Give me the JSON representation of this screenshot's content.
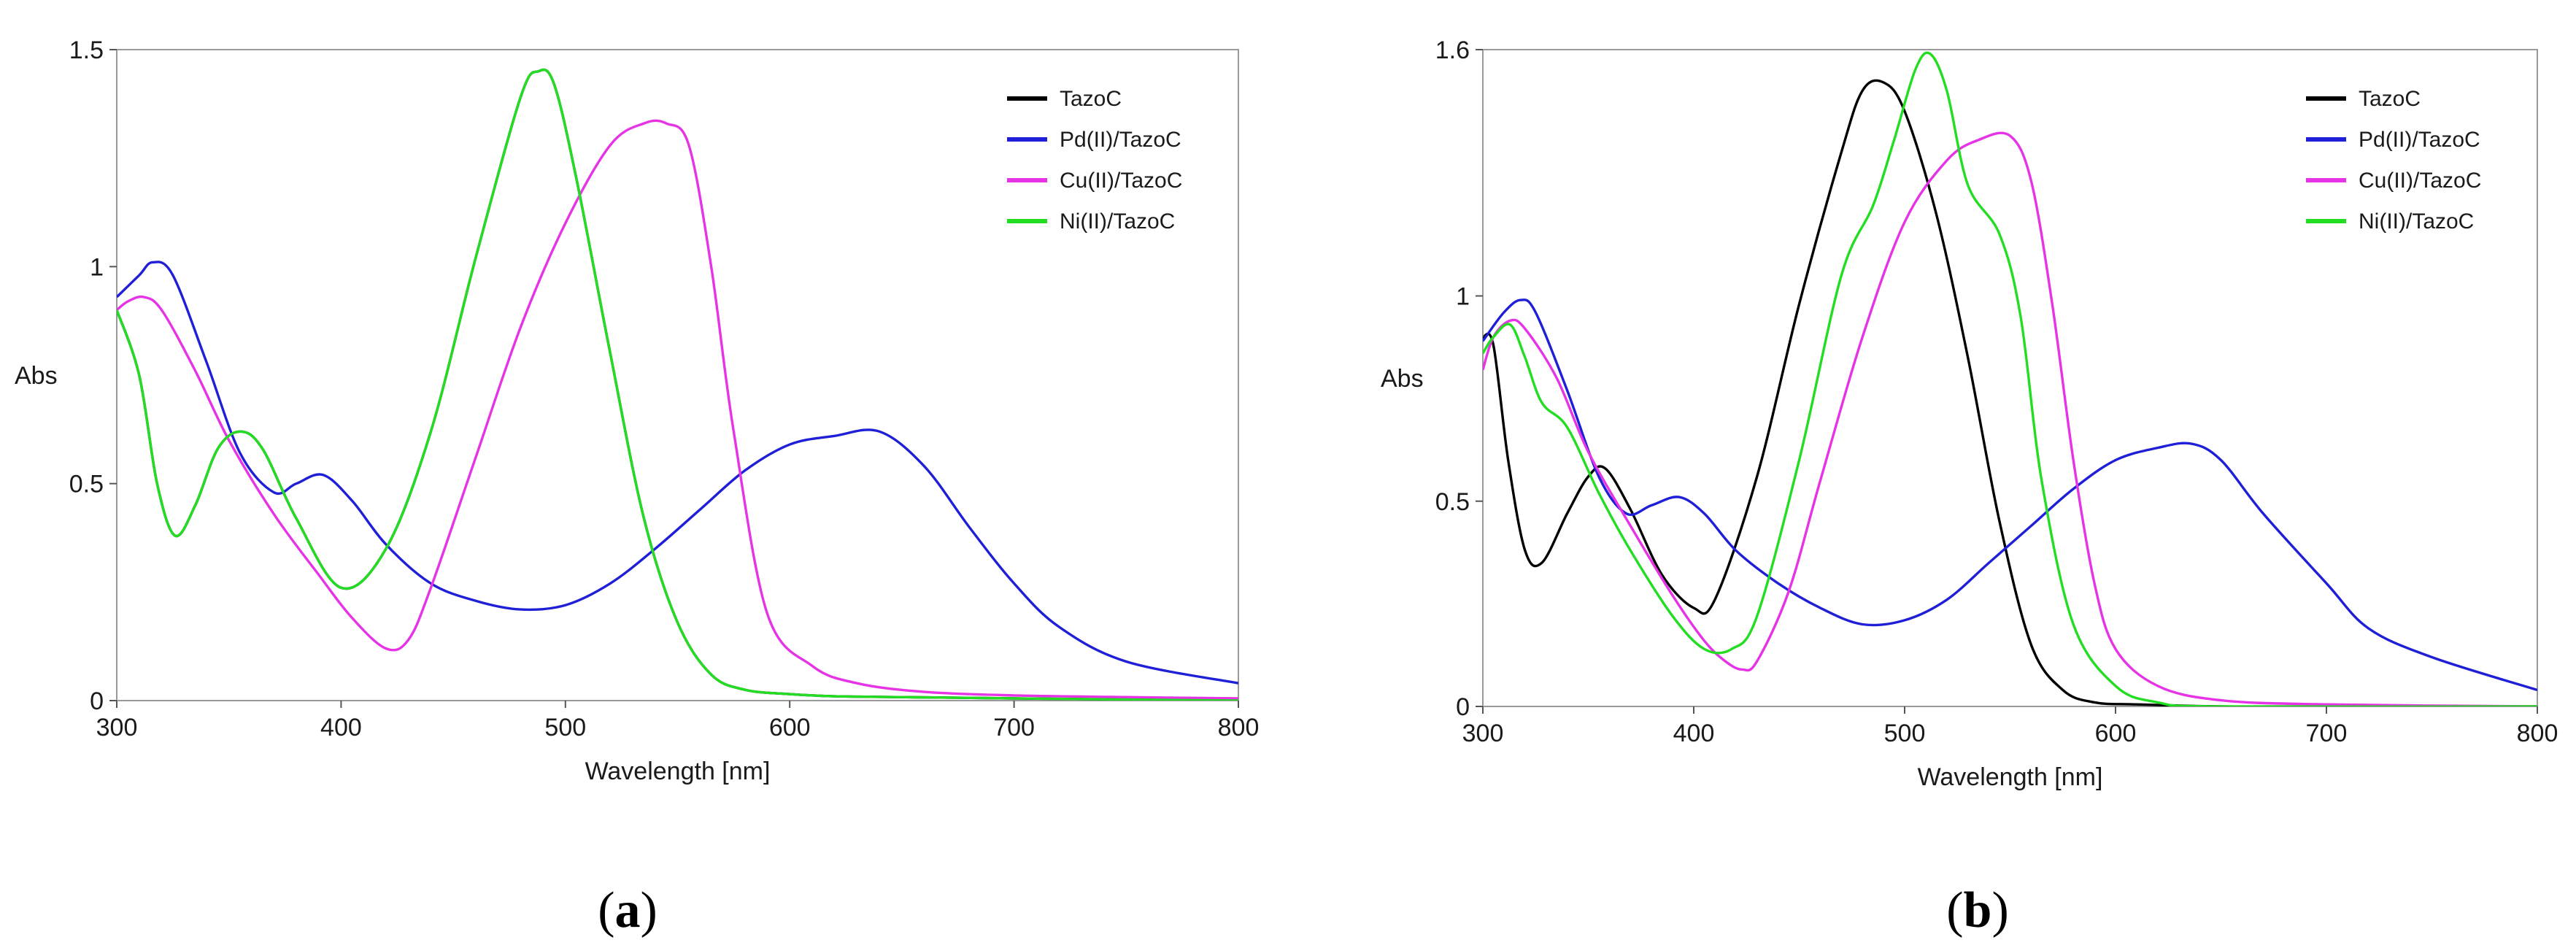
{
  "chart_data": [
    {
      "type": "line",
      "caption": "(a)",
      "xlabel": "Wavelength [nm]",
      "ylabel": "Abs",
      "xlim": [
        300,
        800
      ],
      "ylim": [
        0,
        1.5
      ],
      "xticks": [
        300,
        400,
        500,
        600,
        700,
        800
      ],
      "xtick_labels": [
        "300",
        "400",
        "500",
        "600",
        "700",
        "800"
      ],
      "yticks": [
        0,
        0.5,
        1,
        1.5
      ],
      "ytick_labels": [
        "0",
        "0.5",
        "1",
        "1.5"
      ],
      "legend_position": "top-right",
      "grid": false,
      "series": [
        {
          "name": "TazoC",
          "color": "#000000",
          "x": [
            300,
            310,
            318,
            326,
            335,
            345,
            355,
            365,
            380,
            400,
            420,
            440,
            460,
            480,
            488,
            495,
            505,
            520,
            535,
            550,
            565,
            580,
            600,
            620,
            650,
            700,
            800
          ],
          "y": [
            0.9,
            0.75,
            0.5,
            0.38,
            0.45,
            0.58,
            0.62,
            0.58,
            0.42,
            0.26,
            0.35,
            0.62,
            1.02,
            1.39,
            1.45,
            1.42,
            1.2,
            0.8,
            0.42,
            0.18,
            0.06,
            0.025,
            0.015,
            0.01,
            0.008,
            0.005,
            0.0
          ]
        },
        {
          "name": "Pd(II)/TazoC",
          "color": "#1f1fd8",
          "x": [
            300,
            310,
            316,
            325,
            340,
            355,
            370,
            380,
            392,
            405,
            420,
            440,
            460,
            480,
            500,
            520,
            540,
            560,
            580,
            600,
            620,
            640,
            660,
            680,
            700,
            720,
            750,
            800
          ],
          "y": [
            0.93,
            0.98,
            1.01,
            0.98,
            0.78,
            0.57,
            0.48,
            0.5,
            0.52,
            0.46,
            0.36,
            0.27,
            0.23,
            0.21,
            0.22,
            0.27,
            0.35,
            0.44,
            0.53,
            0.59,
            0.61,
            0.62,
            0.54,
            0.4,
            0.27,
            0.17,
            0.09,
            0.04
          ]
        },
        {
          "name": "Cu(II)/TazoC",
          "color": "#e633e6",
          "x": [
            300,
            305,
            312,
            320,
            335,
            350,
            370,
            390,
            405,
            420,
            430,
            440,
            460,
            480,
            500,
            520,
            535,
            545,
            555,
            565,
            575,
            590,
            610,
            630,
            660,
            700,
            750,
            800
          ],
          "y": [
            0.9,
            0.92,
            0.93,
            0.9,
            0.76,
            0.6,
            0.43,
            0.29,
            0.19,
            0.12,
            0.14,
            0.26,
            0.56,
            0.86,
            1.1,
            1.28,
            1.33,
            1.33,
            1.28,
            1.0,
            0.62,
            0.2,
            0.08,
            0.04,
            0.02,
            0.012,
            0.008,
            0.005
          ]
        },
        {
          "name": "Ni(II)/TazoC",
          "color": "#22dd22",
          "x": [
            300,
            310,
            318,
            326,
            335,
            345,
            355,
            365,
            380,
            400,
            420,
            440,
            460,
            480,
            488,
            495,
            505,
            520,
            535,
            550,
            565,
            580,
            600,
            620,
            650,
            700,
            800
          ],
          "y": [
            0.9,
            0.75,
            0.5,
            0.38,
            0.45,
            0.58,
            0.62,
            0.58,
            0.42,
            0.26,
            0.35,
            0.62,
            1.02,
            1.39,
            1.45,
            1.42,
            1.2,
            0.8,
            0.42,
            0.18,
            0.06,
            0.025,
            0.015,
            0.01,
            0.008,
            0.005,
            0.0
          ]
        }
      ]
    },
    {
      "type": "line",
      "caption": "(b)",
      "xlabel": "Wavelength [nm]",
      "ylabel": "Abs",
      "xlim": [
        300,
        800
      ],
      "ylim": [
        0,
        1.6
      ],
      "xticks": [
        300,
        400,
        500,
        600,
        700,
        800
      ],
      "xtick_labels": [
        "300",
        "400",
        "500",
        "600",
        "700",
        "800"
      ],
      "yticks": [
        0,
        0.5,
        1,
        1.6
      ],
      "ytick_labels": [
        "0",
        "0.5",
        "1",
        "1.6"
      ],
      "legend_position": "top-right",
      "grid": false,
      "series": [
        {
          "name": "TazoC",
          "color": "#000000",
          "x": [
            300,
            305,
            312,
            320,
            328,
            340,
            350,
            358,
            370,
            385,
            400,
            410,
            430,
            450,
            470,
            480,
            490,
            500,
            515,
            530,
            545,
            560,
            575,
            590,
            610,
            650,
            700,
            800
          ],
          "y": [
            0.9,
            0.88,
            0.6,
            0.38,
            0.35,
            0.47,
            0.56,
            0.58,
            0.48,
            0.32,
            0.24,
            0.26,
            0.56,
            0.98,
            1.35,
            1.5,
            1.52,
            1.45,
            1.2,
            0.85,
            0.45,
            0.15,
            0.04,
            0.01,
            0.005,
            0.0,
            0.0,
            0.0
          ]
        },
        {
          "name": "Pd(II)/TazoC",
          "color": "#1f1fd8",
          "x": [
            300,
            310,
            318,
            325,
            340,
            355,
            368,
            380,
            393,
            405,
            420,
            440,
            460,
            480,
            500,
            520,
            540,
            560,
            580,
            600,
            620,
            636,
            650,
            670,
            700,
            720,
            750,
            800
          ],
          "y": [
            0.89,
            0.96,
            0.99,
            0.96,
            0.77,
            0.56,
            0.47,
            0.49,
            0.51,
            0.47,
            0.38,
            0.3,
            0.24,
            0.2,
            0.21,
            0.26,
            0.35,
            0.44,
            0.53,
            0.6,
            0.63,
            0.64,
            0.6,
            0.47,
            0.3,
            0.19,
            0.12,
            0.04
          ]
        },
        {
          "name": "Cu(II)/TazoC",
          "color": "#e633e6",
          "x": [
            300,
            305,
            313,
            320,
            335,
            350,
            370,
            390,
            405,
            415,
            423,
            430,
            445,
            460,
            480,
            500,
            520,
            535,
            550,
            560,
            570,
            580,
            590,
            600,
            620,
            650,
            700,
            800
          ],
          "y": [
            0.82,
            0.9,
            0.94,
            0.92,
            0.8,
            0.62,
            0.44,
            0.27,
            0.16,
            0.11,
            0.09,
            0.11,
            0.28,
            0.55,
            0.9,
            1.18,
            1.33,
            1.38,
            1.39,
            1.28,
            0.98,
            0.6,
            0.3,
            0.14,
            0.05,
            0.015,
            0.005,
            0.0
          ]
        },
        {
          "name": "Ni(II)/TazoC",
          "color": "#22dd22",
          "x": [
            300,
            305,
            313,
            320,
            328,
            340,
            355,
            370,
            390,
            405,
            418,
            430,
            450,
            470,
            485,
            495,
            505,
            512,
            520,
            530,
            545,
            555,
            565,
            580,
            600,
            620,
            650,
            800
          ],
          "y": [
            0.86,
            0.9,
            0.93,
            0.85,
            0.74,
            0.68,
            0.52,
            0.38,
            0.22,
            0.14,
            0.14,
            0.22,
            0.6,
            1.05,
            1.22,
            1.38,
            1.55,
            1.59,
            1.5,
            1.27,
            1.15,
            0.95,
            0.55,
            0.2,
            0.05,
            0.01,
            0.0,
            0.0
          ]
        }
      ]
    }
  ]
}
